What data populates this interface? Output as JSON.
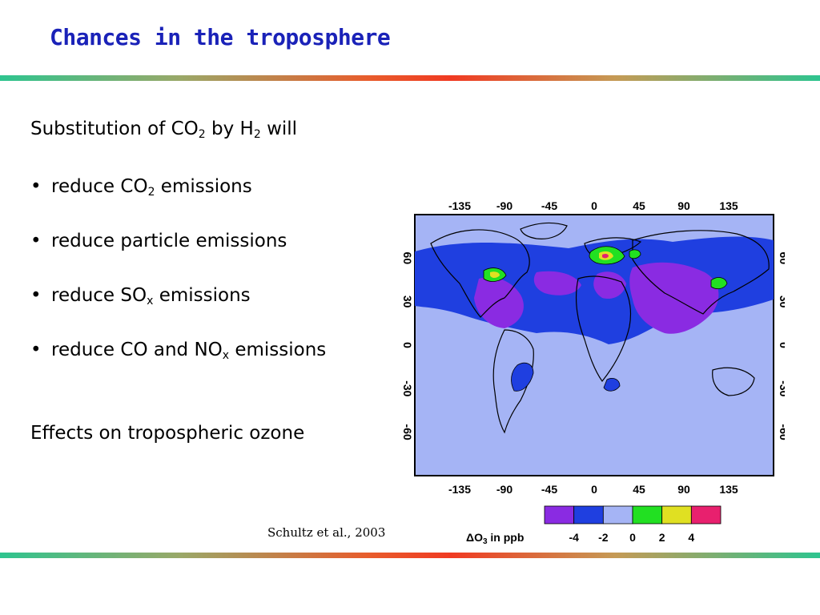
{
  "slide": {
    "title": "Chances in the troposphere",
    "intro": {
      "prefix": "Substitution of CO",
      "sub1": "2",
      "middle": " by H",
      "sub2": "2",
      "suffix": " will"
    },
    "bullets": [
      {
        "dot": "•",
        "pre": "reduce CO",
        "sub": "2",
        "post": " emissions"
      },
      {
        "dot": "•",
        "pre": "reduce particle emissions",
        "sub": "",
        "post": ""
      },
      {
        "dot": "•",
        "pre": "reduce SO",
        "sub": "x",
        "post": " emissions"
      },
      {
        "dot": "•",
        "pre": "reduce CO and NO",
        "sub": "x",
        "post": " emissions"
      }
    ],
    "closing": "Effects on tropospheric ozone",
    "citation": "Schultz et al., 2003"
  },
  "map": {
    "lon_ticks": [
      "-135",
      "-90",
      "-45",
      "0",
      "45",
      "90",
      "135"
    ],
    "lat_ticks": [
      "60",
      "30",
      "0",
      "-30",
      "-60"
    ],
    "legend": {
      "label_prefix": "ΔO",
      "label_sub": "3",
      "label_suffix": " in ppb",
      "colors": [
        "#8a2be2",
        "#1f3fe0",
        "#a5b4f5",
        "#22e022",
        "#e0e022",
        "#e8206e"
      ],
      "ticks": [
        "-4",
        "-2",
        "0",
        "2",
        "4"
      ]
    }
  }
}
